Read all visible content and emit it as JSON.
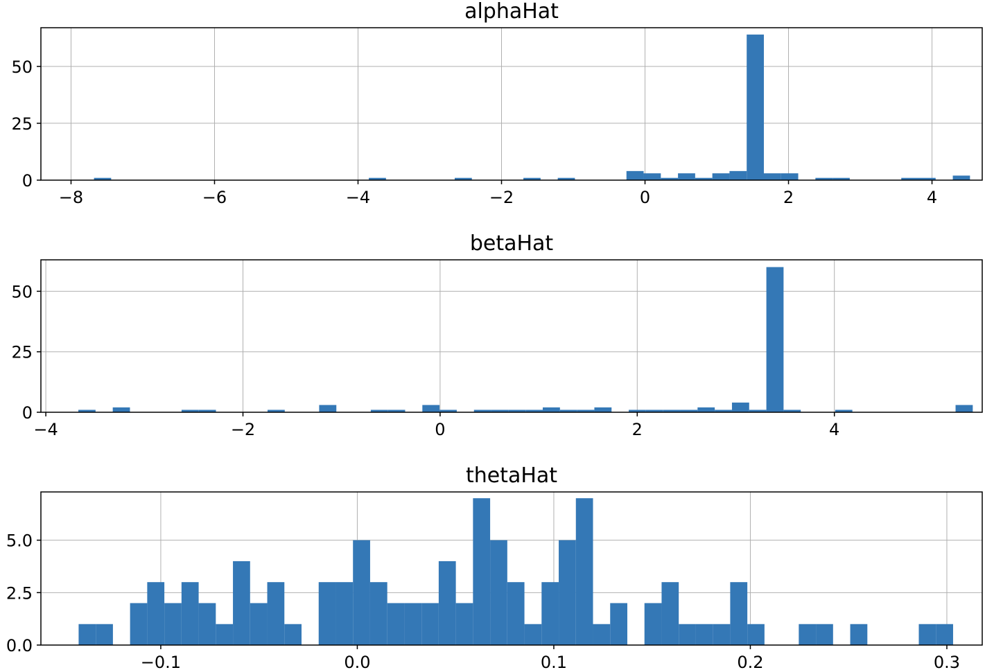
{
  "chart_data": [
    {
      "type": "bar",
      "title": "alphaHat",
      "color": "#3478b6",
      "grid": true,
      "xlim": [
        -8.42,
        4.7
      ],
      "ylim": [
        0,
        67
      ],
      "xticks": [
        -8,
        -6,
        -4,
        -2,
        0,
        2,
        4
      ],
      "xtick_labels": [
        "−8",
        "−6",
        "−4",
        "−2",
        "0",
        "2",
        "4"
      ],
      "yticks": [
        0,
        25,
        50
      ],
      "ytick_labels": [
        "0",
        "25",
        "50"
      ],
      "bin_start": -7.68,
      "bin_width": 0.2394,
      "counts": [
        1,
        0,
        0,
        0,
        0,
        0,
        0,
        0,
        0,
        0,
        0,
        0,
        0,
        0,
        0,
        0,
        1,
        0,
        0,
        0,
        0,
        1,
        0,
        0,
        0,
        1,
        0,
        1,
        0,
        0,
        0,
        4,
        3,
        1,
        3,
        1,
        3,
        4,
        64,
        3,
        3,
        0,
        1,
        1,
        0,
        0,
        0,
        1,
        1,
        0,
        2
      ]
    },
    {
      "type": "bar",
      "title": "betaHat",
      "color": "#3478b6",
      "grid": true,
      "xlim": [
        -4.05,
        5.5
      ],
      "ylim": [
        0,
        63
      ],
      "xticks": [
        -4,
        -2,
        0,
        2,
        4
      ],
      "xtick_labels": [
        "−4",
        "−2",
        "0",
        "2",
        "4"
      ],
      "yticks": [
        0,
        25,
        50
      ],
      "ytick_labels": [
        "0",
        "25",
        "50"
      ],
      "bin_start": -3.67,
      "bin_width": 0.1745,
      "counts": [
        1,
        0,
        2,
        0,
        0,
        0,
        1,
        1,
        0,
        0,
        0,
        1,
        0,
        0,
        3,
        0,
        0,
        1,
        1,
        0,
        3,
        1,
        0,
        1,
        1,
        1,
        1,
        2,
        1,
        1,
        2,
        0,
        1,
        1,
        1,
        1,
        2,
        1,
        4,
        1,
        60,
        1,
        0,
        0,
        1,
        0,
        0,
        0,
        0,
        0,
        0,
        3
      ]
    },
    {
      "type": "bar",
      "title": "thetaHat",
      "color": "#3478b6",
      "grid": true,
      "xlim": [
        -0.161,
        0.318
      ],
      "ylim": [
        0,
        7.3
      ],
      "xticks": [
        -0.1,
        0.0,
        0.1,
        0.2,
        0.3
      ],
      "xtick_labels": [
        "−0.1",
        "0.0",
        "0.1",
        "0.2",
        "0.3"
      ],
      "yticks": [
        0.0,
        2.5,
        5.0
      ],
      "ytick_labels": [
        "0.0",
        "2.5",
        "5.0"
      ],
      "bin_start": -0.1418,
      "bin_width": 0.008725,
      "counts": [
        1,
        1,
        0,
        2,
        3,
        2,
        3,
        2,
        1,
        4,
        2,
        3,
        1,
        0,
        3,
        3,
        5,
        3,
        2,
        2,
        2,
        4,
        2,
        7,
        5,
        3,
        1,
        3,
        5,
        7,
        1,
        2,
        0,
        2,
        3,
        1,
        1,
        1,
        3,
        1,
        0,
        0,
        1,
        1,
        0,
        1,
        0,
        0,
        0,
        1,
        1
      ]
    }
  ]
}
